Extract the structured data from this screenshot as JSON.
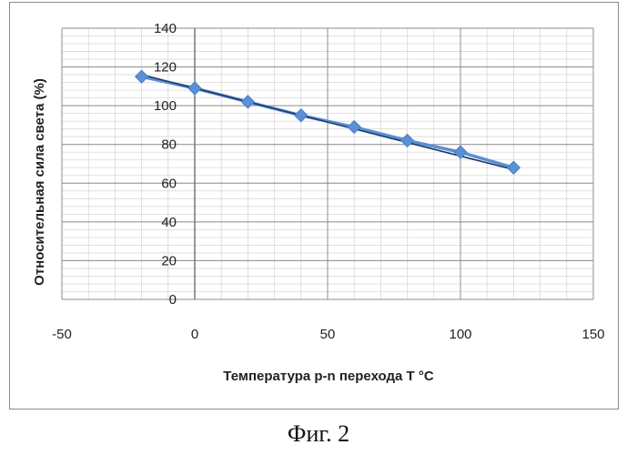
{
  "caption": "Фиг. 2",
  "chart_data": {
    "type": "line",
    "title": "",
    "xlabel": "Температура p-n перехода  T °C",
    "ylabel": "Относительная сила света (%)",
    "xlim": [
      -50,
      150
    ],
    "ylim": [
      0,
      140
    ],
    "x_ticks": [
      -50,
      0,
      50,
      100,
      150
    ],
    "y_ticks": [
      0,
      20,
      40,
      60,
      80,
      100,
      120,
      140
    ],
    "grid": true,
    "legend": "none",
    "series": [
      {
        "color": "#5b8fd6",
        "marker": "diamond",
        "x": [
          -20,
          0,
          20,
          40,
          60,
          80,
          100,
          120
        ],
        "y": [
          115,
          109,
          102,
          95,
          89,
          82,
          76,
          68
        ]
      }
    ],
    "trendline": {
      "color": "#1f3b66",
      "x": [
        -20,
        120
      ],
      "y": [
        116,
        67
      ]
    }
  }
}
